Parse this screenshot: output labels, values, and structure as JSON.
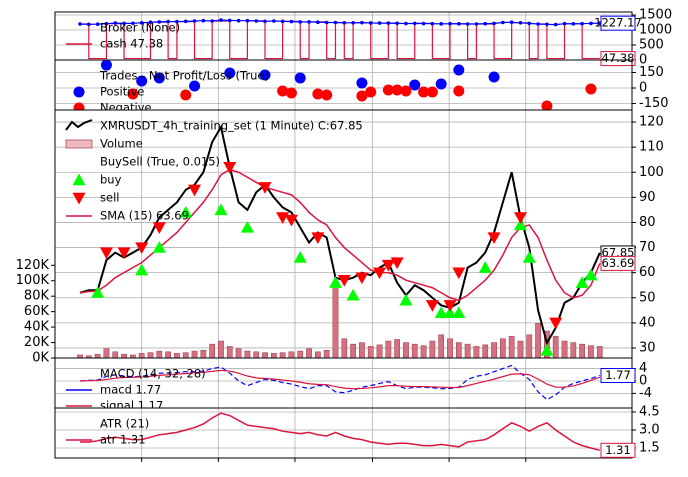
{
  "chart_data": [
    {
      "type": "line",
      "title": "Broker (None)",
      "grid": true,
      "xlim": [
        -2.84,
        62.66
      ],
      "xticks": [
        7,
        15.7,
        24.4,
        33.2,
        41.9,
        50.6
      ],
      "ylim": [
        0,
        1600
      ],
      "yticks": [
        0,
        500,
        1000,
        1500
      ],
      "series": [
        {
          "name": "cash 47.38",
          "style": "step",
          "color": "#dc143c",
          "last_label": true,
          "values": [
            1200,
            47.38,
            47.38,
            1210,
            1210,
            47.38,
            47.38,
            47.38,
            1260,
            1260,
            47.38,
            1280,
            1280,
            47.38,
            47.38,
            1300,
            1300,
            47.38,
            47.38,
            1310,
            1310,
            47.38,
            47.38,
            1290,
            1290,
            47.38,
            1270,
            1270,
            47.38,
            1250,
            47.38,
            1240,
            1240,
            47.38,
            47.38,
            1230,
            47.38,
            47.38,
            1220,
            1220,
            47.38,
            47.38,
            1210,
            1210,
            47.38,
            1200,
            1200,
            47.38,
            47.38,
            1240,
            1240,
            47.38,
            1200,
            47.38,
            47.38,
            1210,
            1210,
            47.38,
            47.38,
            47.38
          ]
        },
        {
          "style": "line",
          "color": "#0000ff",
          "dots": true,
          "last_label": true,
          "values": [
            1200,
            1190,
            1195,
            1210,
            1230,
            1220,
            1225,
            1240,
            1260,
            1270,
            1280,
            1280,
            1290,
            1300,
            1310,
            1300,
            1330,
            1320,
            1310,
            1310,
            1300,
            1290,
            1300,
            1290,
            1280,
            1270,
            1270,
            1260,
            1250,
            1250,
            1240,
            1240,
            1245,
            1235,
            1230,
            1230,
            1225,
            1215,
            1220,
            1215,
            1210,
            1205,
            1210,
            1205,
            1200,
            1200,
            1210,
            1220,
            1250,
            1260,
            1240,
            1220,
            1200,
            1190,
            1180,
            1210,
            1205,
            1210,
            1220,
            1227.17
          ]
        }
      ]
    },
    {
      "type": "scatter",
      "title": "Trades - Net Profit/Loss (True)",
      "grid": true,
      "xlim": [
        -2.84,
        62.66
      ],
      "xticks": [
        7,
        15.7,
        24.4,
        33.2,
        41.9,
        50.6
      ],
      "ylim": [
        -213,
        271
      ],
      "yticks": [
        -150,
        0,
        150
      ],
      "series": [
        {
          "name": "Positive",
          "style": "marker",
          "shape": "circle",
          "color": "#0000ff",
          "x": [
            3,
            7,
            9,
            13,
            17,
            21,
            25,
            32,
            38,
            41,
            43,
            47
          ],
          "values": [
            222,
            68,
            97,
            19,
            145,
            126,
            97,
            48,
            29,
            39,
            174,
            106
          ]
        },
        {
          "name": "Negative",
          "style": "marker",
          "shape": "circle",
          "color": "#ff0000",
          "x": [
            6,
            12,
            23,
            24,
            27,
            28,
            32,
            33,
            35,
            36,
            37,
            39,
            40,
            43,
            53,
            58
          ],
          "values": [
            -58,
            -68,
            -29,
            -48,
            -58,
            -68,
            -77,
            -39,
            -19,
            -19,
            -29,
            -39,
            -39,
            -29,
            -174,
            -10
          ]
        }
      ]
    },
    {
      "type": "line",
      "grid": true,
      "markers_title": "BuySell (True, 0.015)",
      "xlim": [
        -2.84,
        62.66
      ],
      "xticks": [
        7,
        15.7,
        24.4,
        33.2,
        41.9,
        50.6
      ],
      "ylim": [
        26.0,
        124.8
      ],
      "yticks": [
        30,
        40,
        50,
        60,
        70,
        80,
        90,
        100,
        110,
        120
      ],
      "y2lim": [
        0,
        321000
      ],
      "y2ticks": [
        {
          "value": 0,
          "label": "0K"
        },
        {
          "value": 20000,
          "label": "20K"
        },
        {
          "value": 40000,
          "label": "40K"
        },
        {
          "value": 60000,
          "label": "60K"
        },
        {
          "value": 80000,
          "label": "80K"
        },
        {
          "value": 100000,
          "label": "100K"
        },
        {
          "value": 120000,
          "label": "120K"
        }
      ],
      "series": [
        {
          "name": "XMRUSDT_4h_training_set (1 Minute) C:67.85",
          "style": "line",
          "color": "#000000",
          "width": 2,
          "last_label": true,
          "values": [
            52,
            53,
            53,
            65,
            68,
            66,
            68,
            70,
            75,
            82,
            85,
            88,
            93,
            95,
            100,
            112,
            118,
            102,
            88,
            85,
            92,
            95,
            90,
            86,
            84,
            78,
            72,
            76,
            74,
            58,
            57,
            58,
            60,
            59,
            62,
            64,
            56,
            51,
            55,
            53,
            50,
            47,
            46,
            48,
            62,
            64,
            68,
            76,
            88,
            100,
            82,
            70,
            45,
            32,
            38,
            48,
            50,
            56,
            60,
            67.85
          ]
        },
        {
          "name": "Volume",
          "style": "bar",
          "axis": "y2",
          "color": "#d47080",
          "values": [
            4000,
            3000,
            5000,
            12000,
            8000,
            5000,
            4000,
            6000,
            7000,
            9000,
            8000,
            6000,
            7000,
            9000,
            10000,
            18000,
            22000,
            15000,
            12000,
            9000,
            8000,
            7000,
            6000,
            7000,
            8000,
            9000,
            12000,
            8000,
            10000,
            90000,
            25000,
            18000,
            20000,
            15000,
            17000,
            22000,
            24000,
            20000,
            18000,
            16000,
            22000,
            30000,
            25000,
            20000,
            18000,
            15000,
            17000,
            20000,
            25000,
            28000,
            22000,
            30000,
            45000,
            35000,
            28000,
            22000,
            20000,
            18000,
            16000,
            15000
          ]
        },
        {
          "name": "buy",
          "style": "marker",
          "shape": "up",
          "color": "#00ff00",
          "x": [
            2,
            7,
            9,
            12,
            16,
            19,
            25,
            29,
            31,
            37,
            41,
            42,
            43,
            46,
            50,
            51,
            53,
            57,
            58
          ],
          "values": [
            52,
            61,
            70,
            84,
            85,
            78,
            66,
            56,
            51,
            49,
            44,
            44,
            44,
            62,
            79,
            66,
            29,
            56,
            59
          ]
        },
        {
          "name": "sell",
          "style": "marker",
          "shape": "down",
          "color": "#ff0000",
          "x": [
            3,
            5,
            7,
            9,
            13,
            17,
            21,
            23,
            24,
            27,
            30,
            32,
            34,
            35,
            36,
            40,
            42,
            43,
            47,
            50,
            54
          ],
          "values": [
            68,
            68,
            70,
            78,
            93,
            102,
            94,
            82,
            81,
            74,
            57,
            58,
            60,
            63,
            64,
            47,
            47,
            60,
            74,
            82,
            40
          ]
        },
        {
          "name": "SMA (15) 63.69",
          "style": "line",
          "color": "#dc143c",
          "width": 1.5,
          "last_label": true,
          "values": [
            52,
            52.5,
            52.7,
            55,
            58,
            60,
            62,
            64,
            67,
            70,
            73,
            76,
            80,
            84,
            88,
            93,
            99,
            101,
            100,
            98,
            96,
            94,
            93,
            92,
            91,
            88,
            84,
            81,
            79,
            74,
            70,
            67,
            64,
            61,
            60,
            60,
            59,
            57,
            56,
            55,
            54,
            52,
            50,
            49,
            51,
            54,
            57,
            61,
            67,
            74,
            78,
            79,
            74,
            65,
            57,
            52,
            50,
            51,
            55,
            63.69
          ]
        }
      ]
    },
    {
      "type": "line",
      "title": "MACD (14, 32, 28)",
      "grid": true,
      "xlim": [
        -2.84,
        62.66
      ],
      "xticks": [
        7,
        15.7,
        24.4,
        33.2,
        41.9,
        50.6
      ],
      "ylim": [
        -8.7,
        7.4
      ],
      "yticks": [
        -4,
        0,
        4
      ],
      "series": [
        {
          "name": "macd 1.77",
          "style": "line",
          "color": "#0000ff",
          "dash": true,
          "last_label": true,
          "values": [
            0,
            0.2,
            0.3,
            1.5,
            2,
            1.6,
            1.4,
            1.5,
            2,
            2.5,
            2.6,
            2.7,
            3,
            3,
            3.2,
            4,
            4.5,
            2.5,
            0,
            -1.5,
            -0.5,
            0.5,
            0.2,
            -0.5,
            -1,
            -1.8,
            -2.5,
            -1.5,
            -1.5,
            -3.5,
            -3.8,
            -3,
            -2,
            -1.5,
            -0.8,
            -0.2,
            -1.5,
            -2.5,
            -2,
            -2,
            -2.2,
            -2.5,
            -2.4,
            -2,
            0.5,
            1.5,
            2,
            3,
            4,
            5,
            2.5,
            0.5,
            -3.5,
            -6,
            -4.5,
            -2,
            -0.8,
            0,
            0.8,
            1.77
          ]
        },
        {
          "name": "signal 1.17",
          "style": "line",
          "color": "#dc143c",
          "values": [
            0,
            0.1,
            0.2,
            0.5,
            0.9,
            1.1,
            1.2,
            1.3,
            1.5,
            1.8,
            2,
            2.2,
            2.4,
            2.6,
            2.8,
            3.1,
            3.4,
            3.2,
            2.5,
            1.6,
            1,
            0.8,
            0.6,
            0.3,
            0,
            -0.4,
            -0.9,
            -1.1,
            -1.2,
            -1.8,
            -2.3,
            -2.5,
            -2.4,
            -2.2,
            -1.9,
            -1.5,
            -1.5,
            -1.7,
            -1.8,
            -1.8,
            -1.9,
            -2,
            -2.1,
            -2.1,
            -1.5,
            -0.8,
            -0.1,
            0.6,
            1.4,
            2.2,
            2.3,
            2,
            0.6,
            -1,
            -2,
            -2,
            -1.6,
            -0.8,
            0.2,
            1.17
          ]
        }
      ]
    },
    {
      "type": "line",
      "title": "ATR (21)",
      "grid": true,
      "bottom_ticks": true,
      "xlim": [
        -2.84,
        62.66
      ],
      "xticks": [
        7,
        15.7,
        24.4,
        33.2,
        41.9,
        50.6
      ],
      "ylim": [
        0.67,
        4.83
      ],
      "yticks": [
        1.5,
        {
          "value": 3,
          "label": "3.0"
        },
        4.5
      ],
      "series": [
        {
          "name": "atr 1.31",
          "style": "line",
          "color": "#dc143c",
          "width": 1.5,
          "last_label": true,
          "values": [
            2,
            2,
            2.1,
            2.3,
            2.4,
            2.3,
            2.2,
            2.2,
            2.4,
            2.6,
            2.7,
            2.8,
            3,
            3.2,
            3.5,
            4,
            4.4,
            4.2,
            3.8,
            3.4,
            3.3,
            3.2,
            3.1,
            2.9,
            2.8,
            2.7,
            2.8,
            2.6,
            2.5,
            2.8,
            2.5,
            2.3,
            2.2,
            2.0,
            1.9,
            1.8,
            1.9,
            1.9,
            1.8,
            1.7,
            1.7,
            1.8,
            1.7,
            1.6,
            2.0,
            2.1,
            2.2,
            2.6,
            3.1,
            3.6,
            3.3,
            2.9,
            3.3,
            3.6,
            3.0,
            2.5,
            2.0,
            1.7,
            1.5,
            1.31
          ]
        }
      ]
    }
  ]
}
